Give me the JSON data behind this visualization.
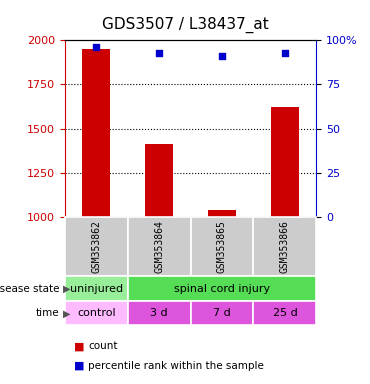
{
  "title": "GDS3507 / L38437_at",
  "samples": [
    "GSM353862",
    "GSM353864",
    "GSM353865",
    "GSM353866"
  ],
  "counts": [
    1950,
    1415,
    1040,
    1620
  ],
  "percentiles": [
    96,
    93,
    91,
    93
  ],
  "ylim_left": [
    1000,
    2000
  ],
  "ylim_right": [
    0,
    100
  ],
  "yticks_left": [
    1000,
    1250,
    1500,
    1750,
    2000
  ],
  "yticks_right": [
    0,
    25,
    50,
    75,
    100
  ],
  "ytick_labels_right": [
    "0",
    "25",
    "50",
    "75",
    "100%"
  ],
  "bar_color": "#cc0000",
  "dot_color": "#0000cc",
  "disease_uninjured_color": "#99ee99",
  "disease_injury_color": "#55dd55",
  "time_control_color": "#ffbbff",
  "time_other_color": "#dd55dd",
  "gray_box_color": "#cccccc",
  "row_label_disease": "disease state",
  "row_label_time": "time",
  "legend_count": "count",
  "legend_percentile": "percentile rank within the sample",
  "bar_width": 0.45
}
